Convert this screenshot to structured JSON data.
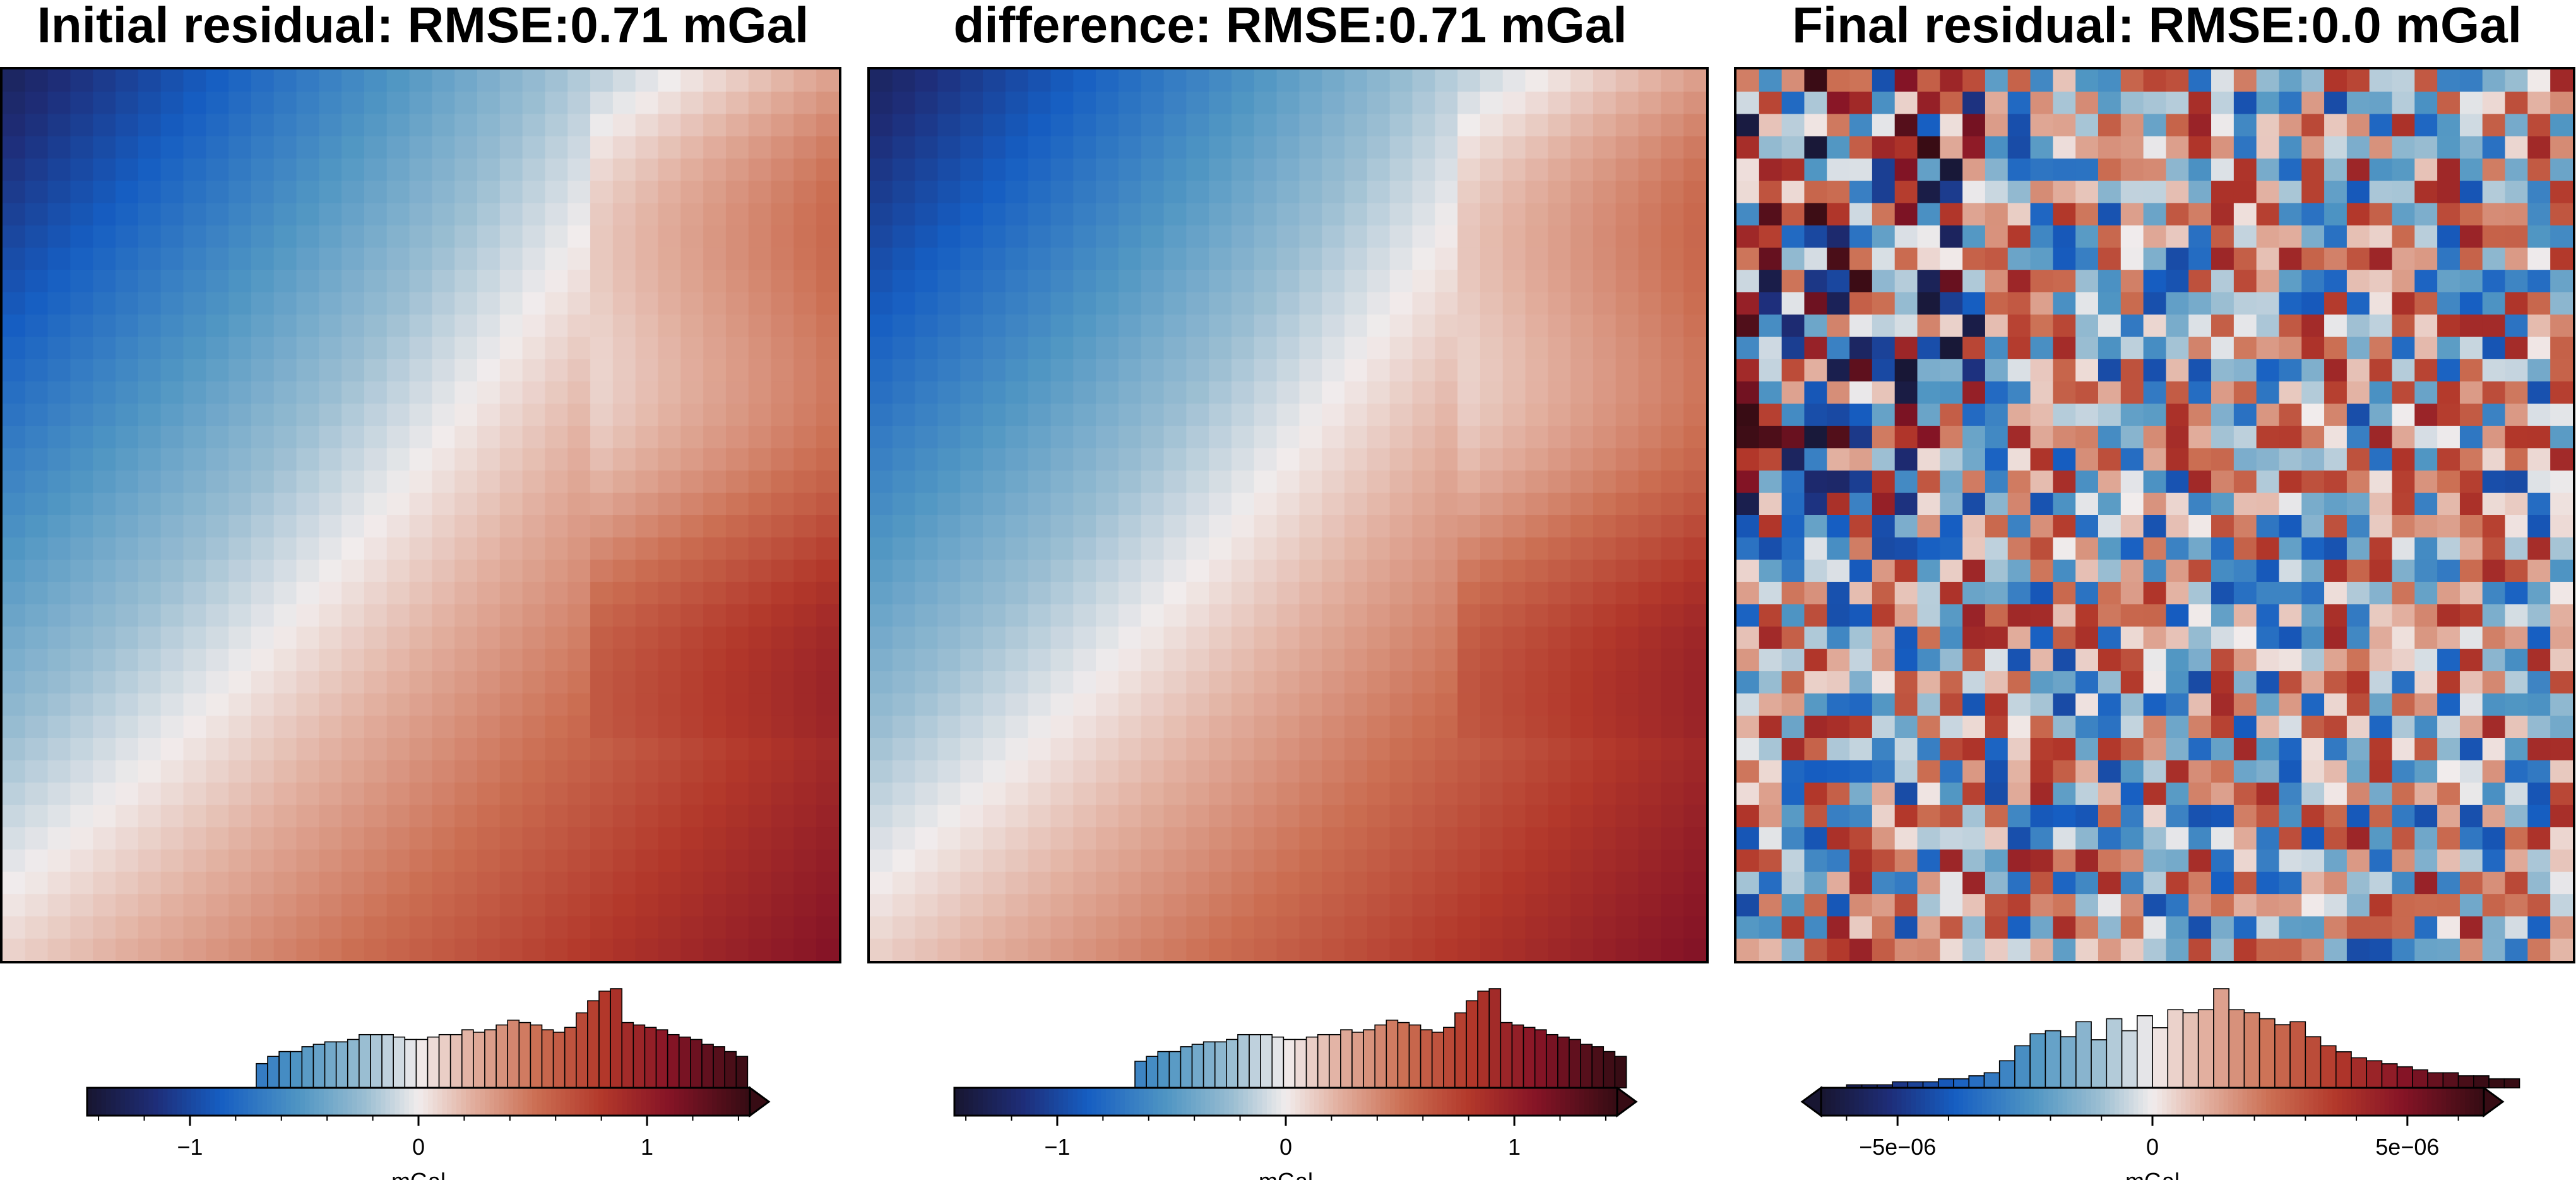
{
  "chart_data": [
    {
      "type": "heatmap",
      "title": "Initial residual: RMSE:0.71 mGal",
      "grid": false,
      "colormap": "balance (dark blue - light blue - white - red - dark red)",
      "cells": {
        "rows": 40,
        "cols": 37,
        "pattern": "smooth: blue upper-left, white diagonal band, red to dark red toward lower-right"
      },
      "value_range": [
        -1.45,
        1.45
      ],
      "colorbar": {
        "label": "mGal",
        "ticks": [
          -1,
          0,
          1
        ],
        "tick_labels": [
          "−1",
          "0",
          "1"
        ],
        "extend": "max",
        "histogram": {
          "bin_start": -0.71,
          "bin_width": 0.05,
          "counts": [
            10,
            13,
            15,
            15,
            17,
            18,
            19,
            19,
            20,
            22,
            22,
            22,
            21,
            20,
            20,
            21,
            22,
            22,
            24,
            23,
            24,
            26,
            28,
            27,
            26,
            24,
            23,
            25,
            31,
            36,
            40,
            41,
            27,
            26,
            25,
            24,
            22,
            21,
            20,
            18,
            17,
            15,
            13
          ]
        }
      }
    },
    {
      "type": "heatmap",
      "title": "difference: RMSE:0.71 mGal",
      "grid": false,
      "colormap": "balance (dark blue - light blue - white - red - dark red)",
      "cells": {
        "rows": 40,
        "cols": 37,
        "pattern": "smooth: blue upper-left, white diagonal band, red to dark red toward lower-right"
      },
      "value_range": [
        -1.45,
        1.45
      ],
      "colorbar": {
        "label": "mGal",
        "ticks": [
          -1,
          0,
          1
        ],
        "tick_labels": [
          "−1",
          "0",
          "1"
        ],
        "extend": "max",
        "histogram": {
          "bin_start": -0.66,
          "bin_width": 0.05,
          "counts": [
            11,
            13,
            15,
            15,
            17,
            18,
            19,
            19,
            20,
            22,
            22,
            22,
            21,
            20,
            20,
            21,
            22,
            22,
            24,
            23,
            24,
            26,
            28,
            27,
            26,
            24,
            23,
            25,
            31,
            36,
            40,
            41,
            27,
            26,
            25,
            24,
            22,
            21,
            20,
            18,
            17,
            15,
            13
          ]
        }
      }
    },
    {
      "type": "heatmap",
      "title": "Final residual: RMSE:0.0 mGal",
      "grid": false,
      "colormap": "balance (dark blue - light blue - white - red - dark red)",
      "cells": {
        "rows": 40,
        "cols": 37,
        "pattern": "random noise"
      },
      "value_range": [
        -6.5e-06,
        6.5e-06
      ],
      "colorbar": {
        "label": "mGal",
        "ticks": [
          -5e-06,
          0,
          5e-06
        ],
        "tick_labels": [
          "−5e−06",
          "0",
          "5e−06"
        ],
        "extend": "both",
        "histogram": {
          "bin_start": -6e-06,
          "bin_width": 3e-07,
          "counts": [
            1,
            1,
            1,
            2,
            2,
            2,
            3,
            3,
            4,
            5,
            9,
            14,
            18,
            19,
            17,
            22,
            16,
            23,
            19,
            24,
            20,
            26,
            25,
            26,
            33,
            26,
            25,
            23,
            21,
            22,
            17,
            14,
            12,
            10,
            9,
            8,
            7,
            6,
            5,
            5,
            4,
            4,
            3,
            3
          ]
        }
      }
    }
  ]
}
